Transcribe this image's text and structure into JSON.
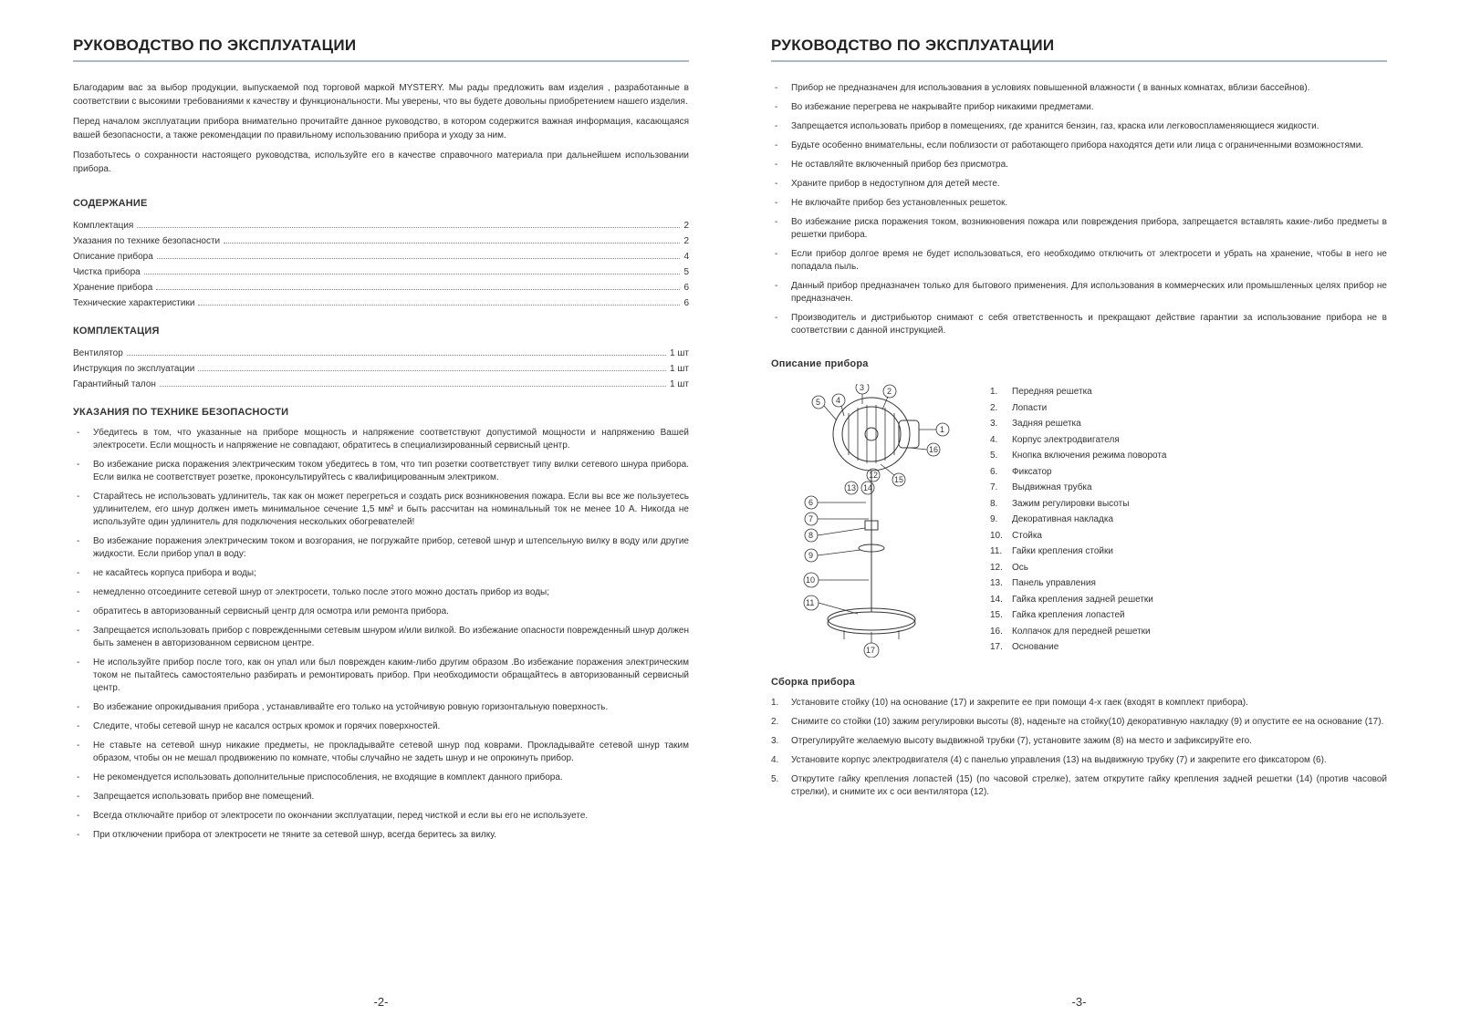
{
  "title": "РУКОВОДСТВО ПО ЭКСПЛУАТАЦИИ",
  "intro": [
    "Благодарим вас за выбор продукции, выпускаемой под торговой маркой MYSTERY. Мы рады предложить вам изделия , разработанные в соответствии с высокими требованиями к качеству и функциональности. Мы уверены, что вы будете довольны приобретением нашего изделия.",
    "Перед началом эксплуатации прибора внимательно прочитайте данное руководство, в котором содержится важная информация, касающаяся вашей безопасности, а также рекомендации по правильному использованию прибора и уходу за ним.",
    "Позаботьтесь о сохранности настоящего руководства, используйте его в качестве справочного материала при дальнейшем использовании прибора."
  ],
  "h_contents": "СОДЕРЖАНИЕ",
  "contents": [
    {
      "label": "Комплектация",
      "page": "2"
    },
    {
      "label": "Указания по технике безопасности",
      "page": "2"
    },
    {
      "label": "Описание прибора",
      "page": "4"
    },
    {
      "label": "Чистка прибора",
      "page": "5"
    },
    {
      "label": "Хранение прибора",
      "page": "6"
    },
    {
      "label": "Технические характеристики",
      "page": "6"
    }
  ],
  "h_kit": "КОМПЛЕКТАЦИЯ",
  "kit": [
    {
      "label": "Вентилятор",
      "qty": "1 шт"
    },
    {
      "label": "Инструкция по эксплуатации",
      "qty": "1 шт"
    },
    {
      "label": "Гарантийный талон",
      "qty": "1 шт"
    }
  ],
  "h_safety": "УКАЗАНИЯ ПО ТЕХНИКЕ БЕЗОПАСНОСТИ",
  "safety_left": [
    "Убедитесь в том, что указанные на приборе мощность и напряжение соответствуют допустимой мощности и напряжению Вашей электросети. Если мощность и напряжение не совпадают, обратитесь в специализированный сервисный центр.",
    "Во избежание риска поражения электрическим током убедитесь в том, что тип розетки соответствует типу вилки сетевого шнура прибора. Если вилка не соответствует розетке, проконсультируйтесь с квалифицированным электриком.",
    "Старайтесь не использовать удлинитель, так как он может перегреться и создать риск возникновения пожара. Если вы все же пользуетесь удлинителем, его шнур должен иметь минимальное сечение 1,5 мм² и быть рассчитан на номинальный ток не менее 10 А. Никогда не используйте один удлинитель для подключения нескольких обогревателей!",
    "Во избежание поражения электрическим током и возгорания, не погружайте прибор, сетевой шнур и штепсельную вилку в воду или другие жидкости. Если прибор упал в воду:",
    "не касайтесь корпуса прибора и воды;",
    "немедленно отсоедините сетевой шнур от электросети, только после этого можно достать прибор из воды;",
    "обратитесь в авторизованный сервисный центр для осмотра или ремонта прибора.",
    "Запрещается использовать прибор с поврежденными сетевым шнуром и/или вилкой. Во избежание опасности поврежденный шнур должен быть заменен в авторизованном сервисном центре.",
    "Не используйте прибор после того, как он упал или был поврежден каким-либо другим образом .Во избежание поражения электрическим током не пытайтесь самостоятельно разбирать и ремонтировать прибор. При необходимости обращайтесь в авторизованный сервисный центр.",
    "Во избежание опрокидывания прибора , устанавливайте его только на устойчивую ровную горизонтальную поверхность.",
    "Следите, чтобы сетевой шнур не касался острых кромок и горячих поверхностей.",
    "Не ставьте на сетевой шнур никакие предметы, не прокладывайте сетевой шнур под коврами. Прокладывайте сетевой шнур таким образом, чтобы он не мешал продвижению по комнате, чтобы случайно не задеть шнур и не опрокинуть прибор.",
    "Не рекомендуется использовать дополнительные приспособления, не входящие в комплект данного прибора.",
    "Запрещается использовать прибор вне помещений.",
    "Всегда отключайте прибор от электросети по окончании эксплуатации, перед чисткой и если вы его не используете.",
    "При отключении прибора от электросети не тяните за сетевой шнур, всегда беритесь за вилку."
  ],
  "safety_right": [
    "Прибор не предназначен для использования в условиях повышенной влажности ( в ванных комнатах, вблизи бассейнов).",
    "Во избежание перегрева не накрывайте прибор никакими предметами.",
    "Запрещается использовать прибор в помещениях, где хранится бензин, газ, краска или легковоспламеняющиеся жидкости.",
    "Будьте особенно внимательны, если поблизости от работающего прибора находятся дети или лица с ограниченными возможностями.",
    "Не оставляйте включенный прибор без присмотра.",
    "Храните прибор в недоступном для детей месте.",
    "Не включайте прибор без установленных решеток.",
    "Во избежание риска поражения током, возникновения пожара или повреждения прибора, запрещается вставлять какие-либо предметы в решетки прибора.",
    "Если прибор долгое время не будет использоваться, его необходимо отключить от электросети и убрать на хранение, чтобы в него не попадала пыль.",
    "Данный прибор предназначен только для бытового применения. Для использования в коммерческих или промышленных целях прибор не предназначен.",
    "Производитель и дистрибьютор снимают с себя ответственность и прекращают действие гарантии за использование прибора не в соответствии с данной инструкцией."
  ],
  "h_desc": "Описание прибора",
  "parts": [
    "Передняя решетка",
    "Лопасти",
    "Задняя решетка",
    "Корпус электродвигателя",
    "Кнопка включения режима поворота",
    "Фиксатор",
    "Выдвижная трубка",
    "Зажим регулировки высоты",
    "Декоративная накладка",
    "Стойка",
    "Гайки крепления стойки",
    "Ось",
    "Панель управления",
    "Гайка крепления задней решетки",
    "Гайка крепления лопастей",
    "Колпачок для передней решетки",
    "Основание"
  ],
  "h_assembly": "Сборка прибора",
  "assembly": [
    "Установите стойку (10) на основание (17) и закрепите ее при помощи 4-х гаек (входят в комплект прибора).",
    "Снимите со стойки (10) зажим регулировки высоты (8), наденьте на стойку(10) декоративную накладку (9) и опустите ее на основание (17).",
    "Отрегулируйте желаемую высоту выдвижной трубки (7), установите зажим (8) на место и зафиксируйте его.",
    "Установите корпус электродвигателя (4) с панелью управления (13) на выдвижную трубку (7) и закрепите его фиксатором (6).",
    "Открутите гайку крепления лопастей (15) (по часовой стрелке), затем открутите гайку крепления задней решетки (14) (против часовой стрелки), и снимите их с оси вентилятора (12)."
  ],
  "pnum_left": "-2-",
  "pnum_right": "-3-",
  "diagram_labels": [
    "1",
    "2",
    "3",
    "4",
    "5",
    "6",
    "7",
    "8",
    "9",
    "10",
    "11",
    "12",
    "13",
    "14",
    "15",
    "16",
    "17"
  ]
}
